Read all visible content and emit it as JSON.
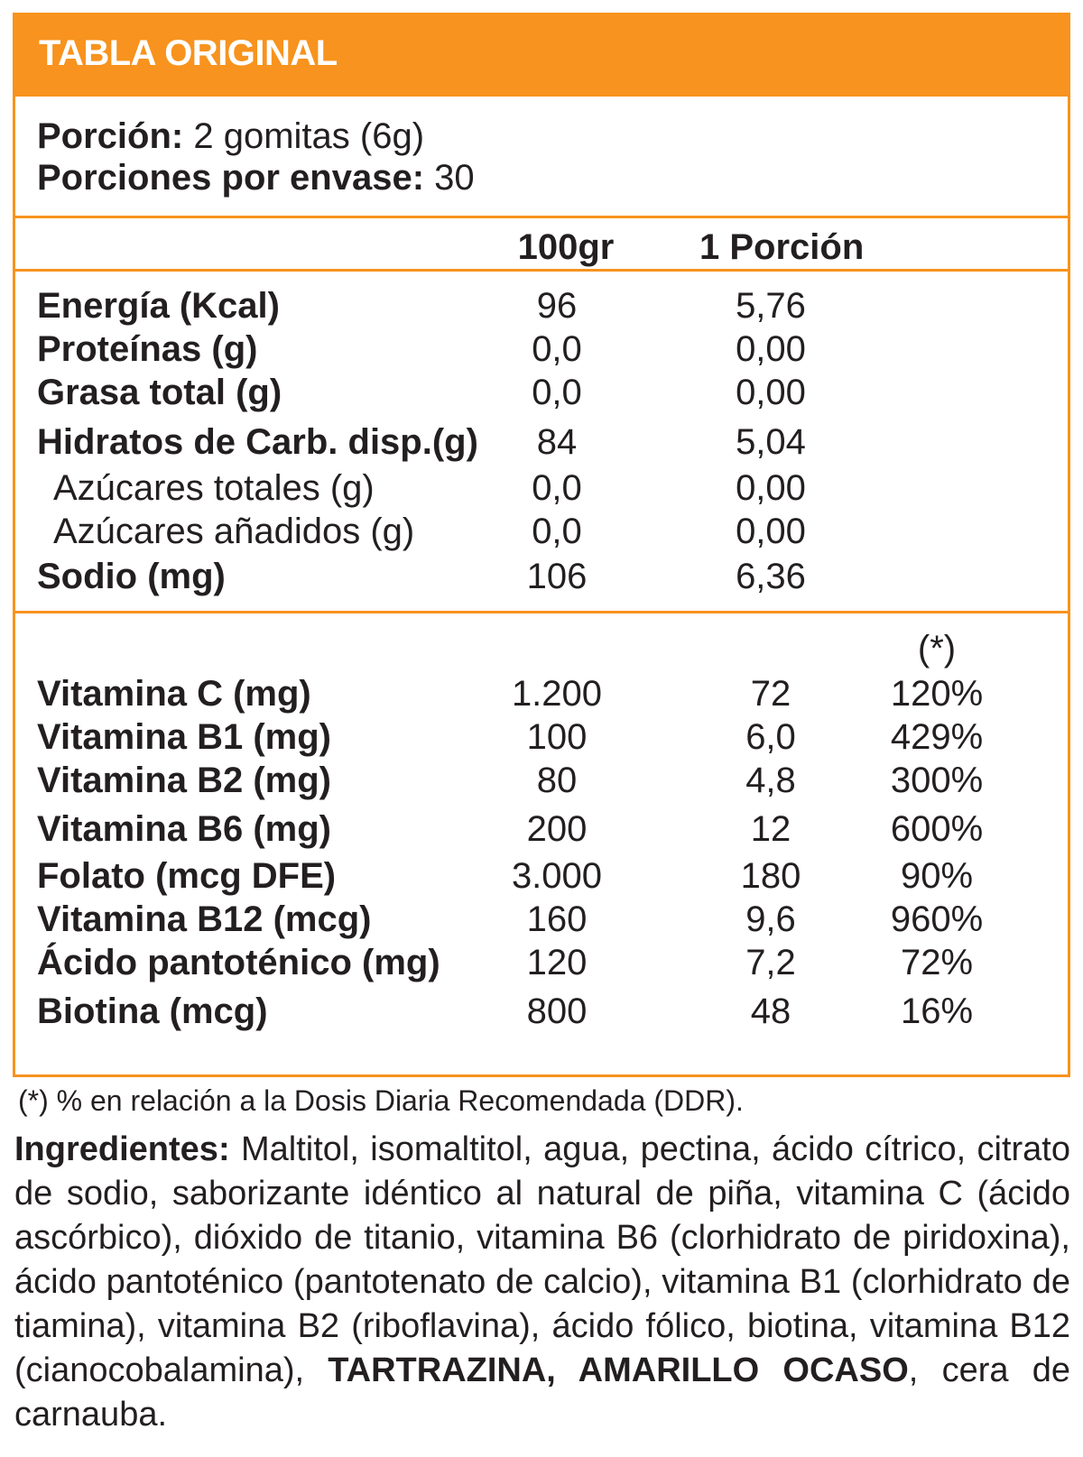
{
  "header": {
    "title": "TABLA ORIGINAL"
  },
  "serving": {
    "portion_label": "Porción:",
    "portion_value": " 2 gomitas (6g)",
    "per_container_label": "Porciones por envase:",
    "per_container_value": " 30"
  },
  "columns": {
    "col_100g": "100gr",
    "col_portion": "1 Porción",
    "col_ddr": "(*)"
  },
  "nutrients": [
    {
      "name": "Energía (Kcal)",
      "per100": "96",
      "perPortion": "5,76"
    },
    {
      "name": "Proteínas (g)",
      "per100": "0,0",
      "perPortion": "0,00"
    },
    {
      "name": "Grasa total (g)",
      "per100": "0,0",
      "perPortion": "0,00"
    },
    {
      "name": "Hidratos de Carb. disp.(g)",
      "per100": "84",
      "perPortion": "5,04"
    },
    {
      "name": "Azúcares totales (g)",
      "per100": "0,0",
      "perPortion": "0,00"
    },
    {
      "name": "Azúcares añadidos (g)",
      "per100": "0,0",
      "perPortion": "0,00"
    },
    {
      "name": "Sodio (mg)",
      "per100": "106",
      "perPortion": "6,36"
    }
  ],
  "vitamins": [
    {
      "name": "Vitamina C (mg)",
      "per100": "1.200",
      "perPortion": "72",
      "ddr": "120%"
    },
    {
      "name": "Vitamina B1 (mg)",
      "per100": "100",
      "perPortion": "6,0",
      "ddr": "429%"
    },
    {
      "name": "Vitamina B2 (mg)",
      "per100": "80",
      "perPortion": "4,8",
      "ddr": "300%"
    },
    {
      "name": "Vitamina B6 (mg)",
      "per100": "200",
      "perPortion": "12",
      "ddr": "600%"
    },
    {
      "name": "Folato (mcg DFE)",
      "per100": "3.000",
      "perPortion": "180",
      "ddr": "90%"
    },
    {
      "name": "Vitamina B12 (mcg)",
      "per100": "160",
      "perPortion": "9,6",
      "ddr": "960%"
    },
    {
      "name": "Ácido pantoténico (mg)",
      "per100": "120",
      "perPortion": "7,2",
      "ddr": "72%"
    },
    {
      "name": "Biotina (mcg)",
      "per100": "800",
      "perPortion": "48",
      "ddr": "16%"
    }
  ],
  "footnote": "(*) % en relación a la Dosis Diaria Recomendada (DDR).",
  "ingredients": {
    "label": "Ingredientes:",
    "text": " Maltitol, isomaltitol, agua, pectina, ácido cítrico, citrato de sodio, saborizante idéntico al natural de piña, vitamina C (ácido ascórbico), dióxido de titanio, vitamina B6 (clorhidrato de piridoxina), ácido pantoténico (pantotenato de calcio), vitamina B1 (clorhidrato de tiamina), vitamina B2 (riboflavina), ácido fólico, biotina, vitamina B12 (cianocobalamina), ",
    "warning": "TARTRAZINA, AMARILLO OCASO",
    "tail": ", cera de carnauba."
  },
  "colors": {
    "accent": "#f7931e",
    "text": "#231f20"
  }
}
